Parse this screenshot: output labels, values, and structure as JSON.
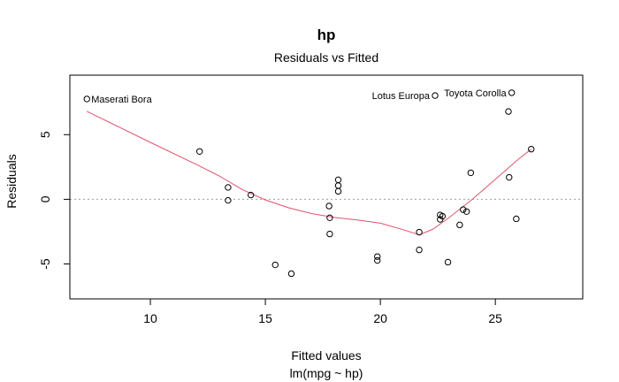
{
  "chart_data": {
    "type": "scatter",
    "title": "hp",
    "subtitle": "Residuals vs Fitted",
    "xlabel": "Fitted values",
    "xlabel_sub": "lm(mpg ~ hp)",
    "ylabel": "Residuals",
    "xlim": [
      6.5,
      28.8
    ],
    "ylim": [
      -7.7,
      9.6
    ],
    "xticks": [
      10,
      15,
      20,
      25
    ],
    "yticks": [
      -5,
      0,
      5
    ],
    "reference_line_y": 0,
    "point_color": "#000000",
    "smooth_color": "#df536b",
    "reference_color": "#9e9e9e",
    "points": [
      {
        "x": 7.24,
        "y": 7.76,
        "label": "Maserati Bora"
      },
      {
        "x": 12.14,
        "y": 3.7
      },
      {
        "x": 13.38,
        "y": 0.92
      },
      {
        "x": 13.38,
        "y": -0.08
      },
      {
        "x": 14.37,
        "y": 0.33
      },
      {
        "x": 15.43,
        "y": -5.07
      },
      {
        "x": 16.13,
        "y": -5.75
      },
      {
        "x": 17.77,
        "y": -0.52
      },
      {
        "x": 17.8,
        "y": -1.43
      },
      {
        "x": 17.8,
        "y": -2.68
      },
      {
        "x": 18.17,
        "y": 1.51
      },
      {
        "x": 18.17,
        "y": 1.06
      },
      {
        "x": 18.17,
        "y": 0.62
      },
      {
        "x": 19.87,
        "y": -4.43
      },
      {
        "x": 19.87,
        "y": -4.73
      },
      {
        "x": 21.69,
        "y": -2.54
      },
      {
        "x": 21.69,
        "y": -3.91
      },
      {
        "x": 22.38,
        "y": 8.02,
        "label": "Lotus Europa"
      },
      {
        "x": 22.6,
        "y": -1.21
      },
      {
        "x": 22.6,
        "y": -1.55
      },
      {
        "x": 22.7,
        "y": -1.31
      },
      {
        "x": 22.94,
        "y": -4.86
      },
      {
        "x": 23.45,
        "y": -1.98
      },
      {
        "x": 23.6,
        "y": -0.8
      },
      {
        "x": 23.75,
        "y": -0.95
      },
      {
        "x": 23.93,
        "y": 2.05
      },
      {
        "x": 25.57,
        "y": 6.79
      },
      {
        "x": 25.6,
        "y": 1.7
      },
      {
        "x": 25.71,
        "y": 8.24,
        "label": "Toyota Corolla"
      },
      {
        "x": 25.91,
        "y": -1.51
      },
      {
        "x": 26.56,
        "y": 3.88
      }
    ],
    "smooth": [
      {
        "x": 7.24,
        "y": 6.8
      },
      {
        "x": 10.0,
        "y": 4.4
      },
      {
        "x": 12.0,
        "y": 2.7
      },
      {
        "x": 13.0,
        "y": 1.8
      },
      {
        "x": 14.0,
        "y": 0.75
      },
      {
        "x": 15.0,
        "y": -0.05
      },
      {
        "x": 16.0,
        "y": -0.65
      },
      {
        "x": 17.0,
        "y": -1.1
      },
      {
        "x": 18.0,
        "y": -1.4
      },
      {
        "x": 19.0,
        "y": -1.6
      },
      {
        "x": 20.0,
        "y": -1.85
      },
      {
        "x": 21.0,
        "y": -2.35
      },
      {
        "x": 21.7,
        "y": -2.75
      },
      {
        "x": 22.3,
        "y": -2.3
      },
      {
        "x": 23.0,
        "y": -1.4
      },
      {
        "x": 24.0,
        "y": 0.0
      },
      {
        "x": 25.0,
        "y": 1.55
      },
      {
        "x": 26.0,
        "y": 3.1
      },
      {
        "x": 26.56,
        "y": 3.88
      }
    ]
  }
}
